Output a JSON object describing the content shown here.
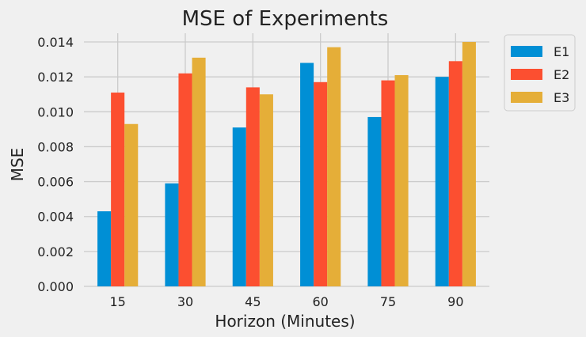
{
  "chart_data": {
    "type": "bar",
    "title": "MSE of Experiments",
    "xlabel": "Horizon (Minutes)",
    "ylabel": "MSE",
    "categories": [
      "15",
      "30",
      "45",
      "60",
      "75",
      "90"
    ],
    "series": [
      {
        "name": "E1",
        "color": "#008fd5",
        "values": [
          0.0043,
          0.0059,
          0.0091,
          0.0128,
          0.0097,
          0.012
        ]
      },
      {
        "name": "E2",
        "color": "#fc4f30",
        "values": [
          0.0111,
          0.0122,
          0.0114,
          0.0117,
          0.0118,
          0.0129
        ]
      },
      {
        "name": "E3",
        "color": "#e5ae38",
        "values": [
          0.0093,
          0.0131,
          0.011,
          0.0137,
          0.0121,
          0.014
        ]
      }
    ],
    "ylim": [
      0,
      0.0145
    ],
    "yticks": [
      "0.000",
      "0.002",
      "0.004",
      "0.006",
      "0.008",
      "0.010",
      "0.012",
      "0.014"
    ],
    "grid": true,
    "legend_position": "outside-right-top"
  }
}
